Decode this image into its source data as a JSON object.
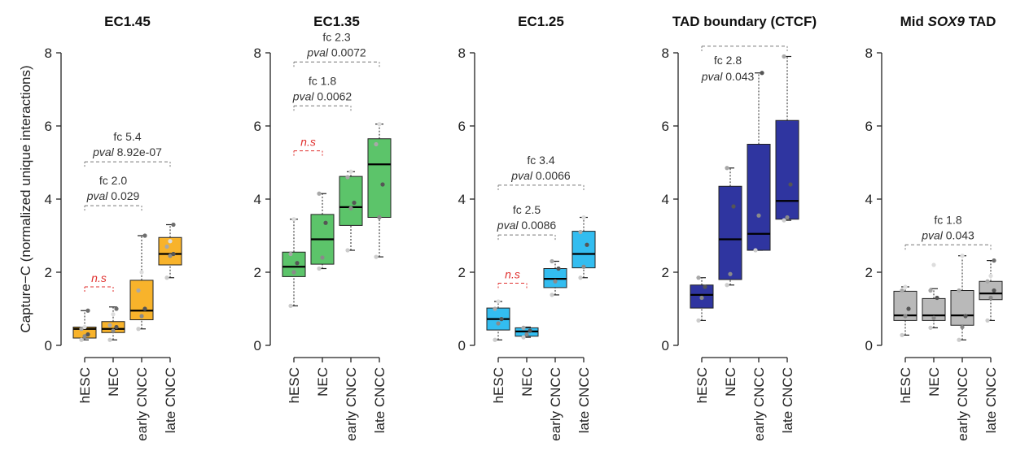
{
  "y_axis_label": "Capture−C (normalized unique interactions)",
  "chart_data": [
    {
      "type": "box",
      "title": "EC1.45",
      "title_parts": [
        {
          "text": "EC1.45",
          "italic": false
        }
      ],
      "color": "#f8b32b",
      "ylim": [
        0,
        8
      ],
      "yticks": [
        "0",
        "2",
        "4",
        "6",
        "8"
      ],
      "categories": [
        "hESC",
        "NEC",
        "early CNCC",
        "late CNCC"
      ],
      "boxes": [
        {
          "whisker_low": 0.15,
          "q1": 0.2,
          "median": 0.45,
          "q3": 0.5,
          "whisker_high": 0.95,
          "points": [
            0.15,
            0.25,
            0.3,
            0.45,
            0.5,
            0.95
          ]
        },
        {
          "whisker_low": 0.15,
          "q1": 0.35,
          "median": 0.45,
          "q3": 0.65,
          "whisker_high": 1.05,
          "points": [
            0.15,
            0.4,
            0.5,
            0.55,
            0.85,
            1.0
          ]
        },
        {
          "whisker_low": 0.45,
          "q1": 0.7,
          "median": 0.95,
          "q3": 1.78,
          "whisker_high": 3.0,
          "points": [
            0.45,
            0.8,
            1.0,
            1.5,
            2.0,
            3.0
          ]
        },
        {
          "whisker_low": 1.85,
          "q1": 2.2,
          "median": 2.5,
          "q3": 2.95,
          "whisker_high": 3.3,
          "points": [
            1.85,
            2.45,
            2.5,
            2.7,
            2.85,
            3.3
          ]
        }
      ],
      "comparisons": [
        {
          "from": 0,
          "to": 1,
          "y": 1.6,
          "ns": true,
          "label": "n.s"
        },
        {
          "from": 0,
          "to": 2,
          "y": 3.82,
          "fc": "fc 2.0",
          "pval": "0.029"
        },
        {
          "from": 0,
          "to": 3,
          "y": 5.02,
          "fc": "fc 5.4",
          "pval": "8.92e-07"
        }
      ]
    },
    {
      "type": "box",
      "title": "EC1.35",
      "title_parts": [
        {
          "text": "EC1.35",
          "italic": false
        }
      ],
      "color": "#5cc46a",
      "ylim": [
        0,
        8
      ],
      "yticks": [
        "0",
        "2",
        "4",
        "6",
        "8"
      ],
      "categories": [
        "hESC",
        "NEC",
        "early CNCC",
        "late CNCC"
      ],
      "boxes": [
        {
          "whisker_low": 1.08,
          "q1": 1.88,
          "median": 2.15,
          "q3": 2.55,
          "whisker_high": 3.45,
          "points": [
            1.08,
            2.0,
            2.25,
            2.5,
            3.45
          ]
        },
        {
          "whisker_low": 2.1,
          "q1": 2.22,
          "median": 2.9,
          "q3": 3.58,
          "whisker_high": 4.15,
          "points": [
            2.1,
            2.4,
            3.35,
            4.15
          ]
        },
        {
          "whisker_low": 2.6,
          "q1": 3.28,
          "median": 3.78,
          "q3": 4.62,
          "whisker_high": 4.75,
          "points": [
            2.6,
            3.75,
            3.9,
            4.6,
            4.75
          ]
        },
        {
          "whisker_low": 2.42,
          "q1": 3.5,
          "median": 4.95,
          "q3": 5.65,
          "whisker_high": 6.05,
          "points": [
            2.42,
            3.5,
            4.4,
            5.5,
            6.05
          ]
        }
      ],
      "comparisons": [
        {
          "from": 0,
          "to": 1,
          "y": 5.32,
          "ns": true,
          "label": "n.s"
        },
        {
          "from": 0,
          "to": 2,
          "y": 6.55,
          "fc": "fc 1.8",
          "pval": "0.0062"
        },
        {
          "from": 0,
          "to": 3,
          "y": 7.75,
          "fc": "fc 2.3",
          "pval": "0.0072"
        }
      ]
    },
    {
      "type": "box",
      "title": "EC1.25",
      "title_parts": [
        {
          "text": "EC1.25",
          "italic": false
        }
      ],
      "color": "#33bdf0",
      "ylim": [
        0,
        8
      ],
      "yticks": [
        "0",
        "2",
        "4",
        "6",
        "8"
      ],
      "categories": [
        "hESC",
        "NEC",
        "early CNCC",
        "late CNCC"
      ],
      "boxes": [
        {
          "whisker_low": 0.15,
          "q1": 0.42,
          "median": 0.72,
          "q3": 1.02,
          "whisker_high": 1.2,
          "points": [
            0.15,
            0.6,
            0.72,
            1.0,
            1.2
          ]
        },
        {
          "whisker_low": 0.22,
          "q1": 0.25,
          "median": 0.38,
          "q3": 0.48,
          "whisker_high": 0.5,
          "points": [
            0.22,
            0.3,
            0.4,
            0.48
          ]
        },
        {
          "whisker_low": 1.38,
          "q1": 1.58,
          "median": 1.82,
          "q3": 2.1,
          "whisker_high": 2.3,
          "points": [
            1.38,
            1.75,
            2.1,
            2.3
          ]
        },
        {
          "whisker_low": 1.85,
          "q1": 2.12,
          "median": 2.5,
          "q3": 3.12,
          "whisker_high": 3.5,
          "points": [
            1.85,
            2.15,
            2.75,
            3.1,
            3.5
          ]
        }
      ],
      "comparisons": [
        {
          "from": 0,
          "to": 1,
          "y": 1.7,
          "ns": true,
          "label": "n.s"
        },
        {
          "from": 0,
          "to": 2,
          "y": 3.02,
          "fc": "fc 2.5",
          "pval": "0.0086"
        },
        {
          "from": 0,
          "to": 3,
          "y": 4.38,
          "fc": "fc 3.4",
          "pval": "0.0066"
        }
      ]
    },
    {
      "type": "box",
      "title": "TAD boundary (CTCF)",
      "title_parts": [
        {
          "text": "TAD boundary (CTCF)",
          "italic": false
        }
      ],
      "color": "#2f35a0",
      "ylim": [
        0,
        8
      ],
      "yticks": [
        "0",
        "2",
        "4",
        "6",
        "8"
      ],
      "categories": [
        "hESC",
        "NEC",
        "early CNCC",
        "late CNCC"
      ],
      "boxes": [
        {
          "whisker_low": 0.68,
          "q1": 1.02,
          "median": 1.38,
          "q3": 1.65,
          "whisker_high": 1.85,
          "points": [
            0.68,
            1.3,
            1.6,
            1.85
          ]
        },
        {
          "whisker_low": 1.65,
          "q1": 1.8,
          "median": 2.9,
          "q3": 4.35,
          "whisker_high": 4.85,
          "points": [
            1.65,
            1.95,
            3.8,
            4.85
          ]
        },
        {
          "whisker_low": 2.6,
          "q1": 2.6,
          "median": 3.05,
          "q3": 5.5,
          "whisker_high": 7.45,
          "points": [
            2.6,
            3.55,
            7.45
          ]
        },
        {
          "whisker_low": 3.42,
          "q1": 3.45,
          "median": 3.95,
          "q3": 6.15,
          "whisker_high": 7.9,
          "points": [
            3.42,
            3.5,
            4.4,
            7.9
          ]
        }
      ],
      "comparisons": [
        {
          "from": 0,
          "to": 3,
          "y": 8.18,
          "fc": "fc 2.8",
          "pval": "0.043",
          "label_side": "below"
        }
      ]
    },
    {
      "type": "box",
      "title": "Mid SOX9 TAD",
      "title_parts": [
        {
          "text": "Mid ",
          "italic": false
        },
        {
          "text": "SOX9",
          "italic": true
        },
        {
          "text": " TAD",
          "italic": false
        }
      ],
      "color": "#b9b9b9",
      "ylim": [
        0,
        8
      ],
      "yticks": [
        "0",
        "2",
        "4",
        "6",
        "8"
      ],
      "categories": [
        "hESC",
        "NEC",
        "early CNCC",
        "late CNCC"
      ],
      "boxes": [
        {
          "whisker_low": 0.28,
          "q1": 0.68,
          "median": 0.82,
          "q3": 1.48,
          "whisker_high": 1.6,
          "points": [
            0.28,
            0.8,
            1.0,
            1.5,
            1.6
          ]
        },
        {
          "whisker_low": 0.48,
          "q1": 0.68,
          "median": 0.82,
          "q3": 1.28,
          "whisker_high": 1.55,
          "points": [
            0.48,
            0.75,
            1.3,
            1.5,
            2.2
          ]
        },
        {
          "whisker_low": 0.15,
          "q1": 0.55,
          "median": 0.82,
          "q3": 1.5,
          "whisker_high": 2.45,
          "points": [
            0.15,
            0.5,
            0.8,
            1.5,
            2.45
          ]
        },
        {
          "whisker_low": 0.68,
          "q1": 1.25,
          "median": 1.42,
          "q3": 1.75,
          "whisker_high": 2.32,
          "points": [
            0.68,
            1.3,
            1.5,
            1.75,
            1.9,
            2.32
          ]
        }
      ],
      "comparisons": [
        {
          "from": 0,
          "to": 3,
          "y": 2.75,
          "fc": "fc 1.8",
          "pval": "0.043"
        }
      ]
    }
  ]
}
